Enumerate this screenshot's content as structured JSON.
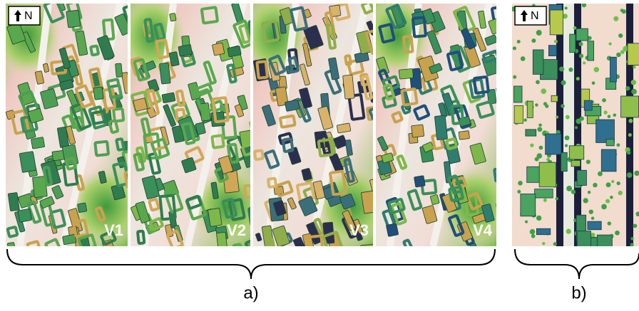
{
  "panel_a": {
    "north": "N",
    "views": [
      "V1",
      "V2",
      "V3",
      "V4"
    ],
    "caption": "a)"
  },
  "panel_b": {
    "north": "N",
    "caption": "b)"
  }
}
